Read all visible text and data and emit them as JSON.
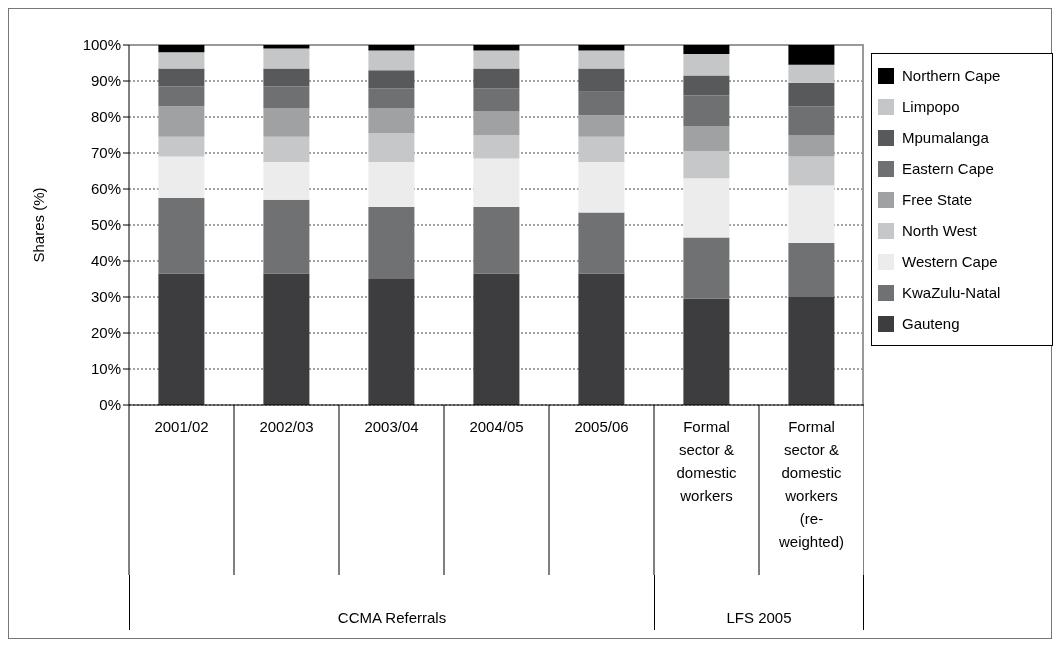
{
  "chart_data": {
    "type": "bar",
    "stacked": true,
    "ylabel": "Shares (%)",
    "categories": [
      "2001/02",
      "2002/03",
      "2003/04",
      "2004/05",
      "2005/06",
      "Formal sector & domestic workers",
      "Formal sector & domestic workers (re-weighted)"
    ],
    "series": [
      {
        "name": "Gauteng",
        "color": "#3d3d3f",
        "values": [
          36.5,
          36.5,
          35,
          36.5,
          36.5,
          29.5,
          30
        ]
      },
      {
        "name": "KwaZulu-Natal",
        "color": "#707173",
        "values": [
          21,
          20.5,
          20,
          18.5,
          17,
          17,
          15
        ]
      },
      {
        "name": "Western Cape",
        "color": "#ebeceb",
        "values": [
          11.5,
          10.5,
          12.5,
          13.5,
          14,
          16.5,
          16
        ]
      },
      {
        "name": "North West",
        "color": "#c6c7c8",
        "values": [
          5.5,
          7,
          8,
          6.5,
          7,
          7.5,
          8
        ]
      },
      {
        "name": "Free State",
        "color": "#a0a1a2",
        "values": [
          8.5,
          8,
          7,
          6.5,
          6,
          7,
          6
        ]
      },
      {
        "name": "Eastern Cape",
        "color": "#6f7072",
        "values": [
          5.5,
          6,
          5.5,
          6.5,
          6.5,
          8.5,
          8
        ]
      },
      {
        "name": "Mpumalanga",
        "color": "#58595b",
        "values": [
          5,
          5,
          5,
          5.5,
          6.5,
          5.5,
          6.5
        ]
      },
      {
        "name": "Limpopo",
        "color": "#c5c6c7",
        "values": [
          4.5,
          5.5,
          5.5,
          5,
          5,
          6,
          5
        ]
      },
      {
        "name": "Northern Cape",
        "color": "#000000",
        "values": [
          2,
          1,
          1.5,
          1.5,
          1.5,
          2.5,
          5.5
        ]
      }
    ],
    "ylim": [
      0,
      100
    ],
    "yticks": [
      {
        "value": 0,
        "label": "0%"
      },
      {
        "value": 10,
        "label": "10%"
      },
      {
        "value": 20,
        "label": "20%"
      },
      {
        "value": 30,
        "label": "30%"
      },
      {
        "value": 40,
        "label": "40%"
      },
      {
        "value": 50,
        "label": "50%"
      },
      {
        "value": 60,
        "label": "60%"
      },
      {
        "value": 70,
        "label": "70%"
      },
      {
        "value": 80,
        "label": "80%"
      },
      {
        "value": 90,
        "label": "90%"
      },
      {
        "value": 100,
        "label": "100%"
      }
    ],
    "grid": "y",
    "legend": "right",
    "annotations": [
      "CCMA Referrals",
      "LFS 2005"
    ]
  }
}
